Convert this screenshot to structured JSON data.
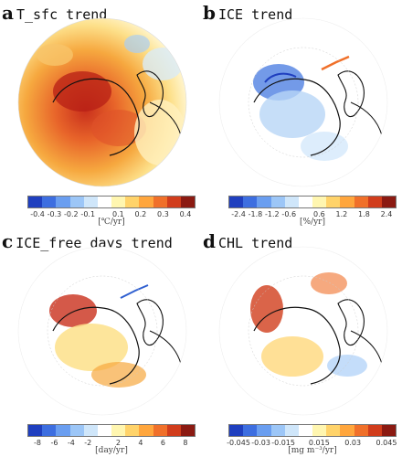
{
  "panels": [
    {
      "letter": "a",
      "title": "T_sfc trend",
      "ticks": [
        "-0.4",
        "-0.3",
        "-0.2",
        "-0.1",
        "0.1",
        "0.2",
        "0.3",
        "0.4"
      ],
      "unit": "[℃/yr]",
      "bar_blue": "#2f5fd0",
      "bar_red": "#8b1a12"
    },
    {
      "letter": "b",
      "title": "ICE trend",
      "ticks": [
        "-2.4",
        "-1.8",
        "-1.2",
        "-0.6",
        "0.6",
        "1.2",
        "1.8",
        "2.4"
      ],
      "unit": "[%/yr]",
      "bar_blue": "#2f5fd0",
      "bar_red": "#8b1a12"
    },
    {
      "letter": "c",
      "title": "ICE_free_days trend",
      "ticks": [
        "-8",
        "-6",
        "-4",
        "-2",
        "2",
        "4",
        "6",
        "8"
      ],
      "unit": "[day/yr]",
      "bar_blue": "#2f5fd0",
      "bar_red": "#8b1a12"
    },
    {
      "letter": "d",
      "title": "CHL trend",
      "ticks": [
        "-0.045",
        "-0.03",
        "-0.015",
        "0.015",
        "0.03",
        "0.045"
      ],
      "unit": "[mg m⁻³/yr]",
      "bar_blue": "#2f5fd0",
      "bar_red": "#8b1a12"
    }
  ],
  "colorbar_colors": [
    "#1f3fbf",
    "#3d6ee0",
    "#6a9ef0",
    "#9cc6f7",
    "#cfe6fa",
    "#ffffff",
    "#fff6b0",
    "#ffd36a",
    "#ffa63d",
    "#f0702a",
    "#d13d1c",
    "#8b1a12"
  ]
}
